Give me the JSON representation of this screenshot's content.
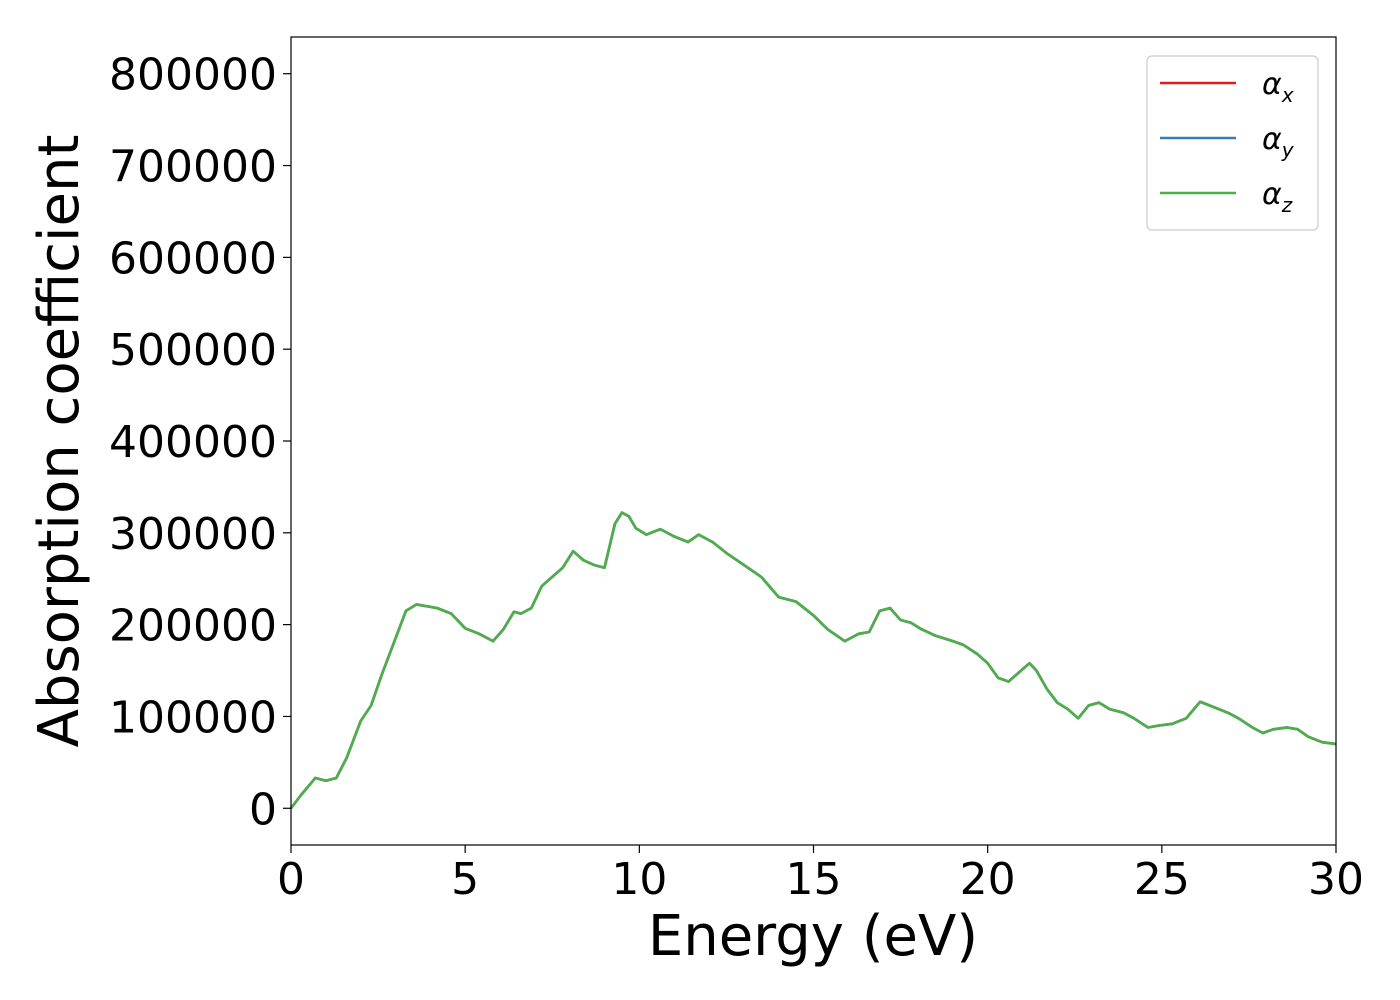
{
  "chart_data": {
    "type": "line",
    "xlabel": "Energy (eV)",
    "ylabel": "Absorption coefficient",
    "xlim": [
      0,
      30
    ],
    "ylim": [
      -40000,
      840000
    ],
    "x_ticks": [
      "0",
      "5",
      "10",
      "15",
      "20",
      "25",
      "30"
    ],
    "y_ticks": [
      "0",
      "100000",
      "200000",
      "300000",
      "400000",
      "500000",
      "600000",
      "700000",
      "800000"
    ],
    "grid": false,
    "legend_position": "top-right",
    "legend": [
      {
        "symbol": "α",
        "sub": "x",
        "color": "#e41a1c"
      },
      {
        "symbol": "α",
        "sub": "y",
        "color": "#377eb8"
      },
      {
        "symbol": "α",
        "sub": "z",
        "color": "#4daf4a"
      }
    ],
    "x": [
      0,
      0.3,
      0.7,
      1.0,
      1.3,
      1.6,
      2.0,
      2.3,
      2.6,
      3.0,
      3.3,
      3.6,
      3.9,
      4.2,
      4.6,
      5.0,
      5.4,
      5.8,
      6.1,
      6.4,
      6.6,
      6.9,
      7.2,
      7.5,
      7.8,
      8.1,
      8.4,
      8.7,
      9.0,
      9.3,
      9.5,
      9.7,
      9.9,
      10.2,
      10.6,
      11.0,
      11.4,
      11.7,
      12.1,
      12.5,
      13.0,
      13.5,
      14.0,
      14.5,
      15.0,
      15.4,
      15.9,
      16.3,
      16.6,
      16.9,
      17.2,
      17.5,
      17.8,
      18.1,
      18.5,
      19.0,
      19.3,
      19.7,
      20.0,
      20.3,
      20.6,
      20.9,
      21.2,
      21.4,
      21.7,
      22.0,
      22.3,
      22.6,
      22.9,
      23.2,
      23.5,
      23.9,
      24.2,
      24.6,
      24.9,
      25.3,
      25.7,
      26.1,
      26.5,
      26.9,
      27.2,
      27.6,
      27.9,
      28.2,
      28.6,
      28.9,
      29.2,
      29.6,
      30.0
    ],
    "series": [
      {
        "color": "#e41a1c",
        "values": [
          0,
          15000,
          33000,
          30000,
          33000,
          55000,
          95000,
          112000,
          145000,
          185000,
          215000,
          222000,
          220000,
          218000,
          212000,
          196000,
          190000,
          182000,
          195000,
          214000,
          212000,
          218000,
          242000,
          252000,
          262000,
          280000,
          270000,
          265000,
          262000,
          310000,
          322000,
          318000,
          305000,
          298000,
          304000,
          296000,
          290000,
          298000,
          290000,
          278000,
          265000,
          252000,
          230000,
          225000,
          210000,
          195000,
          182000,
          190000,
          192000,
          215000,
          218000,
          205000,
          202000,
          195000,
          188000,
          182000,
          178000,
          168000,
          158000,
          142000,
          138000,
          148000,
          158000,
          150000,
          130000,
          115000,
          108000,
          98000,
          112000,
          115000,
          108000,
          104000,
          98000,
          88000,
          90000,
          92000,
          98000,
          116000,
          110000,
          104000,
          98000,
          88000,
          82000,
          86000,
          88000,
          86000,
          78000,
          72000,
          70000
        ]
      },
      {
        "color": "#377eb8",
        "values": [
          0,
          15000,
          33000,
          30000,
          33000,
          55000,
          95000,
          112000,
          145000,
          185000,
          215000,
          222000,
          220000,
          218000,
          212000,
          196000,
          190000,
          182000,
          195000,
          214000,
          212000,
          218000,
          242000,
          252000,
          262000,
          280000,
          270000,
          265000,
          262000,
          310000,
          322000,
          318000,
          305000,
          298000,
          304000,
          296000,
          290000,
          298000,
          290000,
          278000,
          265000,
          252000,
          230000,
          225000,
          210000,
          195000,
          182000,
          190000,
          192000,
          215000,
          218000,
          205000,
          202000,
          195000,
          188000,
          182000,
          178000,
          168000,
          158000,
          142000,
          138000,
          148000,
          158000,
          150000,
          130000,
          115000,
          108000,
          98000,
          112000,
          115000,
          108000,
          104000,
          98000,
          88000,
          90000,
          92000,
          98000,
          116000,
          110000,
          104000,
          98000,
          88000,
          82000,
          86000,
          88000,
          86000,
          78000,
          72000,
          70000
        ]
      },
      {
        "color": "#4daf4a",
        "values": [
          0,
          15000,
          33000,
          30000,
          33000,
          55000,
          95000,
          112000,
          145000,
          185000,
          215000,
          222000,
          220000,
          218000,
          212000,
          196000,
          190000,
          182000,
          195000,
          214000,
          212000,
          218000,
          242000,
          252000,
          262000,
          280000,
          270000,
          265000,
          262000,
          310000,
          322000,
          318000,
          305000,
          298000,
          304000,
          296000,
          290000,
          298000,
          290000,
          278000,
          265000,
          252000,
          230000,
          225000,
          210000,
          195000,
          182000,
          190000,
          192000,
          215000,
          218000,
          205000,
          202000,
          195000,
          188000,
          182000,
          178000,
          168000,
          158000,
          142000,
          138000,
          148000,
          158000,
          150000,
          130000,
          115000,
          108000,
          98000,
          112000,
          115000,
          108000,
          104000,
          98000,
          88000,
          90000,
          92000,
          98000,
          116000,
          110000,
          104000,
          98000,
          88000,
          82000,
          86000,
          88000,
          86000,
          78000,
          72000,
          70000
        ]
      }
    ]
  }
}
